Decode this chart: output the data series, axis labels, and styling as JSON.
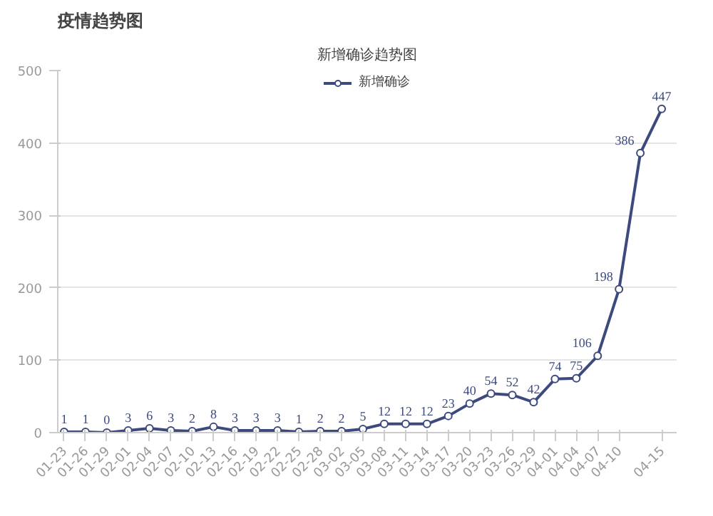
{
  "chart_data": {
    "type": "line",
    "title": "疫情趋势图",
    "subtitle": "新增确诊趋势图",
    "categories": [
      "01-23",
      "01-26",
      "01-29",
      "02-01",
      "02-04",
      "02-07",
      "02-10",
      "02-13",
      "02-16",
      "02-19",
      "02-22",
      "02-25",
      "02-28",
      "03-02",
      "03-05",
      "03-08",
      "03-11",
      "03-14",
      "03-17",
      "03-20",
      "03-23",
      "03-26",
      "03-29",
      "04-01",
      "04-04",
      "04-07",
      "04-10",
      null,
      "04-15"
    ],
    "series": [
      {
        "name": "新增确诊",
        "color": "#3d4a7e",
        "values": [
          1,
          1,
          0,
          3,
          6,
          3,
          2,
          8,
          3,
          3,
          3,
          1,
          2,
          2,
          5,
          12,
          12,
          12,
          23,
          40,
          54,
          52,
          42,
          74,
          75,
          106,
          198,
          386,
          447
        ]
      }
    ],
    "ylim": [
      0,
      500
    ],
    "yticks": [
      0,
      100,
      200,
      300,
      400,
      500
    ],
    "grid": "y",
    "legend": "top",
    "marker": "circle",
    "line_style": "solid",
    "data_labels": true
  }
}
